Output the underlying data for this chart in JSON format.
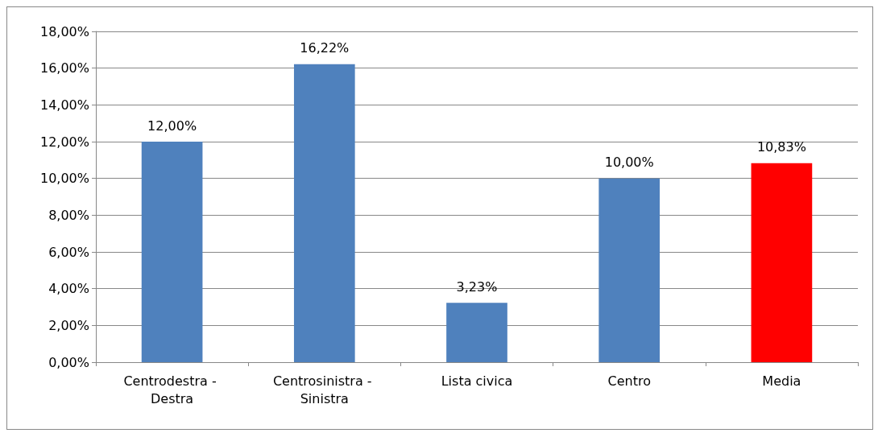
{
  "chart_data": {
    "type": "bar",
    "categories": [
      "Centrodestra - Destra",
      "Centrosinistra - Sinistra",
      "Lista civica",
      "Centro",
      "Media"
    ],
    "values": [
      12,
      16.22,
      3.23,
      10,
      10.83
    ],
    "colors": [
      "#4f81bd",
      "#4f81bd",
      "#4f81bd",
      "#4f81bd",
      "#ff0000"
    ],
    "value_labels": [
      "12,00%",
      "16,22%",
      "3,23%",
      "10,00%",
      "10,83%"
    ],
    "ylim": [
      0,
      18
    ],
    "yticks": [
      {
        "value": 0,
        "label": "0,00%"
      },
      {
        "value": 2,
        "label": "2,00%"
      },
      {
        "value": 4,
        "label": "4,00%"
      },
      {
        "value": 6,
        "label": "6,00%"
      },
      {
        "value": 8,
        "label": "8,00%"
      },
      {
        "value": 10,
        "label": "10,00%"
      },
      {
        "value": 12,
        "label": "12,00%"
      },
      {
        "value": 14,
        "label": "14,00%"
      },
      {
        "value": 16,
        "label": "16,00%"
      },
      {
        "value": 18,
        "label": "18,00%"
      }
    ],
    "grid": "y"
  }
}
